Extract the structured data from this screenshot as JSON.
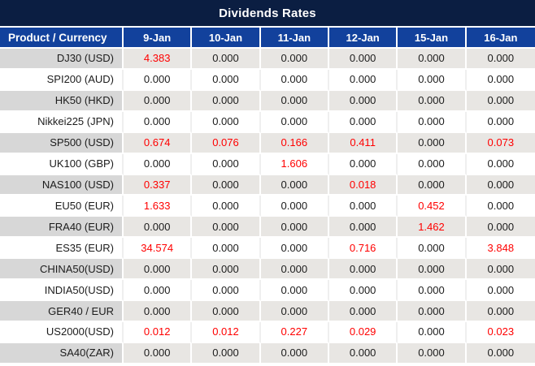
{
  "title": "Dividends Rates",
  "table": {
    "product_header": "Product / Currency",
    "date_headers": [
      "9-Jan",
      "10-Jan",
      "11-Jan",
      "12-Jan",
      "15-Jan",
      "16-Jan"
    ],
    "rows": [
      {
        "product": "DJ30 (USD)",
        "values": [
          "4.383",
          "0.000",
          "0.000",
          "0.000",
          "0.000",
          "0.000"
        ]
      },
      {
        "product": "SPI200 (AUD)",
        "values": [
          "0.000",
          "0.000",
          "0.000",
          "0.000",
          "0.000",
          "0.000"
        ]
      },
      {
        "product": "HK50 (HKD)",
        "values": [
          "0.000",
          "0.000",
          "0.000",
          "0.000",
          "0.000",
          "0.000"
        ]
      },
      {
        "product": "Nikkei225 (JPN)",
        "values": [
          "0.000",
          "0.000",
          "0.000",
          "0.000",
          "0.000",
          "0.000"
        ]
      },
      {
        "product": "SP500 (USD)",
        "values": [
          "0.674",
          "0.076",
          "0.166",
          "0.411",
          "0.000",
          "0.073"
        ]
      },
      {
        "product": "UK100 (GBP)",
        "values": [
          "0.000",
          "0.000",
          "1.606",
          "0.000",
          "0.000",
          "0.000"
        ]
      },
      {
        "product": "NAS100 (USD)",
        "values": [
          "0.337",
          "0.000",
          "0.000",
          "0.018",
          "0.000",
          "0.000"
        ]
      },
      {
        "product": "EU50 (EUR)",
        "values": [
          "1.633",
          "0.000",
          "0.000",
          "0.000",
          "0.452",
          "0.000"
        ]
      },
      {
        "product": "FRA40 (EUR)",
        "values": [
          "0.000",
          "0.000",
          "0.000",
          "0.000",
          "1.462",
          "0.000"
        ]
      },
      {
        "product": "ES35 (EUR)",
        "values": [
          "34.574",
          "0.000",
          "0.000",
          "0.716",
          "0.000",
          "3.848"
        ]
      },
      {
        "product": "CHINA50(USD)",
        "values": [
          "0.000",
          "0.000",
          "0.000",
          "0.000",
          "0.000",
          "0.000"
        ]
      },
      {
        "product": "INDIA50(USD)",
        "values": [
          "0.000",
          "0.000",
          "0.000",
          "0.000",
          "0.000",
          "0.000"
        ]
      },
      {
        "product": "GER40 / EUR",
        "values": [
          "0.000",
          "0.000",
          "0.000",
          "0.000",
          "0.000",
          "0.000"
        ]
      },
      {
        "product": "US2000(USD)",
        "values": [
          "0.012",
          "0.012",
          "0.227",
          "0.029",
          "0.000",
          "0.023"
        ]
      },
      {
        "product": "SA40(ZAR)",
        "values": [
          "0.000",
          "0.000",
          "0.000",
          "0.000",
          "0.000",
          "0.000"
        ]
      }
    ]
  },
  "colors": {
    "title_bar_bg": "#0b1e42",
    "header_row_bg": "#12419c",
    "nonzero_value": "#ff0000",
    "zero_value": "#1c1c1c",
    "alt_row_label_bg": "#d7d7d7",
    "alt_row_cell_bg": "#e8e6e3"
  }
}
